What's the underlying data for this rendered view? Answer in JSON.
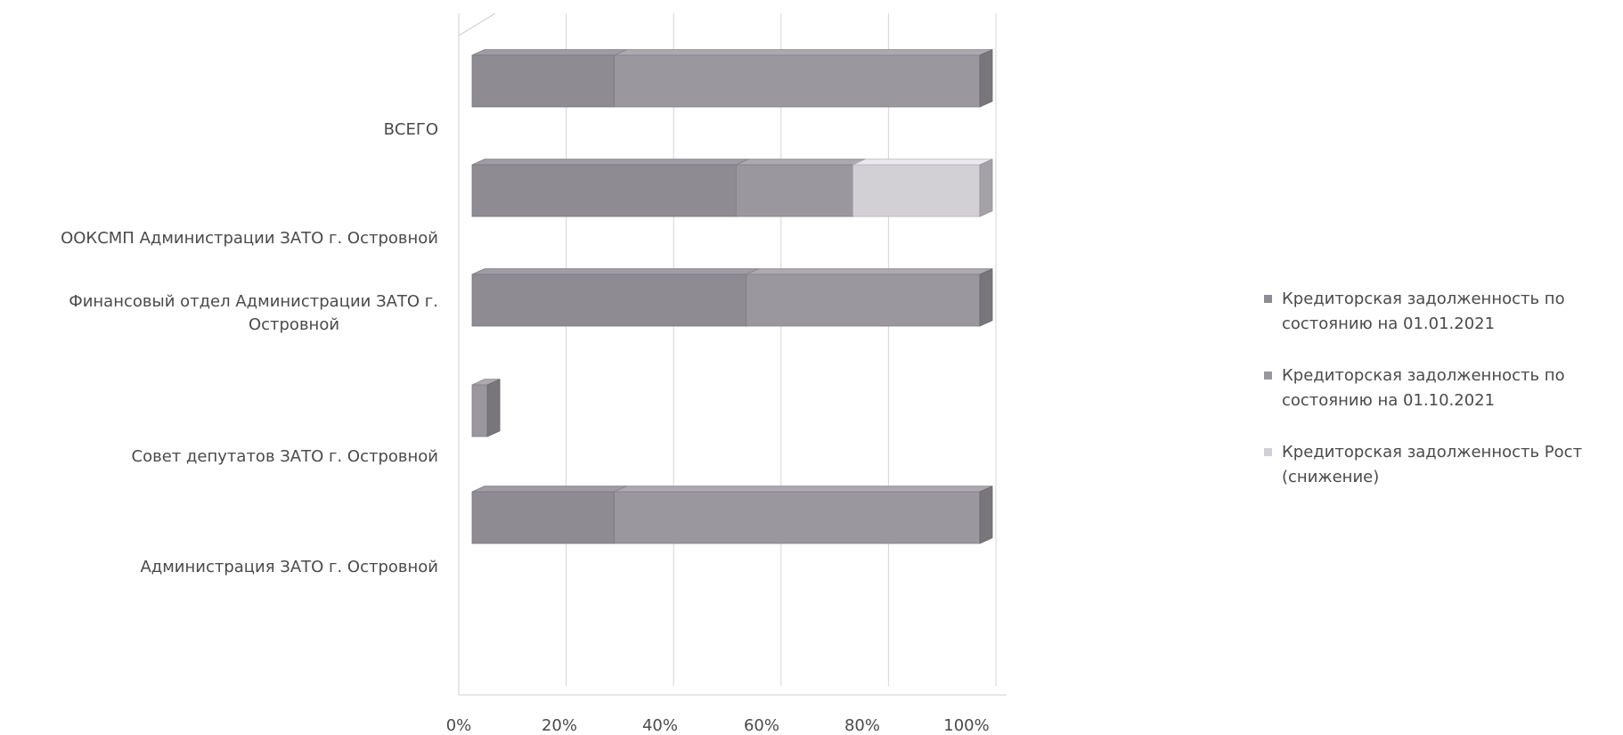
{
  "chart_data": {
    "type": "bar",
    "orientation": "horizontal",
    "stacked": "percent",
    "three_d": true,
    "grid": true,
    "legend_position": "right",
    "categories": [
      "Администрация ЗАТО г. Островной",
      "Совет депутатов ЗАТО  г. Островной",
      "Финансовый отдел  Администрации  ЗАТО г. Островной",
      "ООКСМП Администрации ЗАТО г. Островной",
      "ВСЕГО"
    ],
    "category_label_lines": [
      [
        "Администрация ЗАТО г. Островной"
      ],
      [
        "Совет депутатов ЗАТО  г. Островной"
      ],
      [
        "Финансовый отдел  Администрации  ЗАТО г.",
        "Островной"
      ],
      [
        "ООКСМП Администрации ЗАТО г. Островной"
      ],
      [
        "ВСЕГО"
      ]
    ],
    "series": [
      {
        "name": "Кредиторская задолженность по состоянию на  01.01.2021",
        "name_lines": [
          "Кредиторская задолженность по",
          "состоянию на  01.01.2021"
        ],
        "color": "#8e8b93",
        "values": [
          28,
          0,
          54,
          52,
          28
        ]
      },
      {
        "name": "Кредиторская задолженность по состоянию на  01.10.2021",
        "name_lines": [
          "Кредиторская задолженность по",
          "состоянию на  01.10.2021"
        ],
        "color": "#9a979e",
        "values": [
          72,
          3,
          46,
          23,
          72
        ]
      },
      {
        "name": "Кредиторская задолженность  Рост (снижение)",
        "name_lines": [
          "Кредиторская задолженность  Рост",
          "(снижение)"
        ],
        "color": "#d2d0d5",
        "values": [
          0,
          0,
          0,
          25,
          0
        ]
      }
    ],
    "x_ticks": [
      "0%",
      "20%",
      "40%",
      "60%",
      "80%",
      "100%"
    ],
    "xlim": [
      0,
      100
    ]
  }
}
